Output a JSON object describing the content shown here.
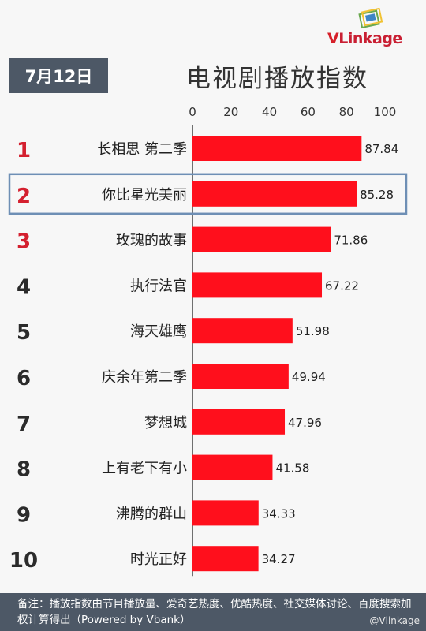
{
  "header": {
    "date": "7月12日",
    "title": "电视剧播放指数",
    "logo_text": "VLinkage",
    "logo_prefix": "V",
    "logo_rest": "Linkage"
  },
  "footer": {
    "note": "备注：播放指数由节目播放量、爱奇艺热度、优酷热度、社交媒体讨论、百度搜索加权计算得出（Powered by Vbank）",
    "watermark": "@Vlinkage"
  },
  "colors": {
    "bar": "#ff0f1c",
    "rank_top3": "#d4202f",
    "rank_other": "#2b2b2b",
    "highlight_border": "#6e8fb5",
    "badge_bg": "#4d5866"
  },
  "chart_data": {
    "type": "bar",
    "orientation": "horizontal",
    "title": "电视剧播放指数",
    "xlim": [
      0,
      100
    ],
    "ticks": [
      0,
      20,
      40,
      60,
      80,
      100
    ],
    "tick_labels": [
      "0",
      "20",
      "40",
      "60",
      "80",
      "100"
    ],
    "grid": false,
    "highlighted_rank": 2,
    "ranks": [
      "1",
      "2",
      "3",
      "4",
      "5",
      "6",
      "7",
      "8",
      "9",
      "10"
    ],
    "categories": [
      "长相思 第二季",
      "你比星光美丽",
      "玫瑰的故事",
      "执行法官",
      "海天雄鹰",
      "庆余年第二季",
      "梦想城",
      "上有老下有小",
      "沸腾的群山",
      "时光正好"
    ],
    "values": [
      87.84,
      85.28,
      71.86,
      67.22,
      51.98,
      49.94,
      47.96,
      41.58,
      34.33,
      34.27
    ],
    "value_labels": [
      "87.84",
      "85.28",
      "71.86",
      "67.22",
      "51.98",
      "49.94",
      "47.96",
      "41.58",
      "34.33",
      "34.27"
    ]
  }
}
